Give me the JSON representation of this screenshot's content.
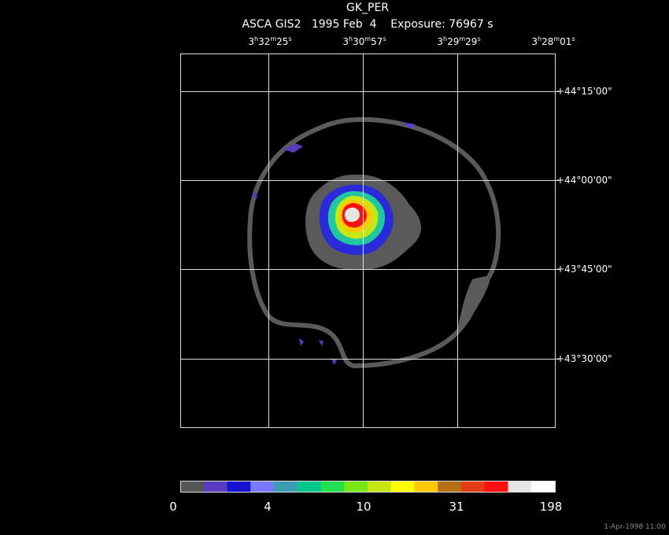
{
  "header": {
    "object": "GK_PER",
    "info": "ASCA GIS2   1995 Feb  4    Exposure: 76967 s"
  },
  "ra_labels": [
    [
      "3",
      "h",
      "32",
      "m",
      "25",
      "s"
    ],
    [
      "3",
      "h",
      "30",
      "m",
      "57",
      "s"
    ],
    [
      "3",
      "h",
      "29",
      "m",
      "29",
      "s"
    ],
    [
      "3",
      "h",
      "28",
      "m",
      "01",
      "s"
    ]
  ],
  "dec_labels": [
    "+44°15'00\"",
    "+44°00'00\"",
    "+43°45'00\"",
    "+43°30'00\""
  ],
  "colorbar": {
    "colors": [
      "#555555",
      "#5a3cc0",
      "#1414d0",
      "#7878ff",
      "#3c9cb4",
      "#00c88c",
      "#20e050",
      "#78e614",
      "#c8e614",
      "#ffff00",
      "#ffc800",
      "#b46e14",
      "#e63c14",
      "#ff1010",
      "#e6e6e6",
      "#ffffff"
    ],
    "labels": [
      "0",
      "4",
      "10",
      "31",
      "198"
    ]
  },
  "timestamp": "1-Apr-1998 11:00"
}
